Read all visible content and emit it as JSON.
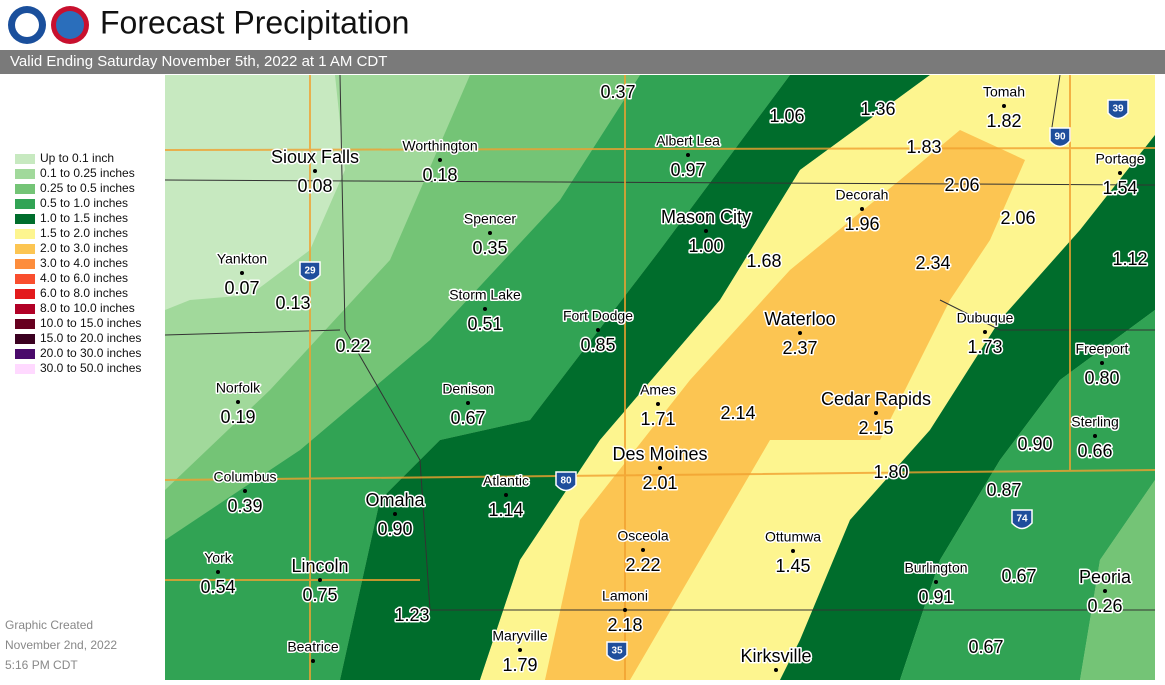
{
  "header": {
    "title": "Forecast Precipitation",
    "subtitle": "Valid Ending Saturday November 5th, 2022 at 1 AM CDT"
  },
  "legend": [
    {
      "label": "Up to 0.1 inch",
      "color": "#c7e9c0"
    },
    {
      "label": "0.1 to 0.25 inches",
      "color": "#a1d99b"
    },
    {
      "label": "0.25 to 0.5 inches",
      "color": "#74c476"
    },
    {
      "label": "0.5 to 1.0 inches",
      "color": "#31a354"
    },
    {
      "label": "1.0 to 1.5 inches",
      "color": "#006d2c"
    },
    {
      "label": "1.5 to 2.0 inches",
      "color": "#fdf58f"
    },
    {
      "label": "2.0 to 3.0 inches",
      "color": "#fcc552"
    },
    {
      "label": "3.0 to 4.0 inches",
      "color": "#fd8d3c"
    },
    {
      "label": "4.0 to 6.0 inches",
      "color": "#f94e2e"
    },
    {
      "label": "6.0 to 8.0 inches",
      "color": "#e31a1c"
    },
    {
      "label": "8.0 to 10.0 inches",
      "color": "#b10026"
    },
    {
      "label": "10.0 to 15.0 inches",
      "color": "#67001f"
    },
    {
      "label": "15.0 to 20.0 inches",
      "color": "#3b0020"
    },
    {
      "label": "20.0 to 30.0 inches",
      "color": "#4a0a6b"
    },
    {
      "label": "30.0 to 50.0 inches",
      "color": "#ffd9ff"
    }
  ],
  "cities": [
    {
      "name": "Sioux Falls",
      "value": "0.08"
    },
    {
      "name": "Worthington",
      "value": "0.18"
    },
    {
      "name": "Albert Lea",
      "value": "0.97"
    },
    {
      "name": "Spencer",
      "value": "0.35"
    },
    {
      "name": "Mason City",
      "value": "1.00"
    },
    {
      "name": "Decorah",
      "value": "1.96"
    },
    {
      "name": "Tomah",
      "value": "1.82"
    },
    {
      "name": "Portage",
      "value": "1.54"
    },
    {
      "name": "Yankton",
      "value": "0.07"
    },
    {
      "name": "Storm Lake",
      "value": "0.51"
    },
    {
      "name": "Fort Dodge",
      "value": "0.85"
    },
    {
      "name": "Waterloo",
      "value": "2.37"
    },
    {
      "name": "Dubuque",
      "value": "1.73"
    },
    {
      "name": "Freeport",
      "value": "0.80"
    },
    {
      "name": "Norfolk",
      "value": "0.19"
    },
    {
      "name": "Denison",
      "value": "0.67"
    },
    {
      "name": "Ames",
      "value": "1.71"
    },
    {
      "name": "Cedar Rapids",
      "value": "2.15"
    },
    {
      "name": "Sterling",
      "value": "0.66"
    },
    {
      "name": "Columbus",
      "value": "0.39"
    },
    {
      "name": "Omaha",
      "value": "0.90"
    },
    {
      "name": "Atlantic",
      "value": "1.14"
    },
    {
      "name": "Des Moines",
      "value": "2.01"
    },
    {
      "name": "Ottumwa",
      "value": "1.45"
    },
    {
      "name": "Osceola",
      "value": "2.22"
    },
    {
      "name": "York",
      "value": "0.54"
    },
    {
      "name": "Lincoln",
      "value": "0.75"
    },
    {
      "name": "Burlington",
      "value": "0.91"
    },
    {
      "name": "Peoria",
      "value": "0.26"
    },
    {
      "name": "Lamoni",
      "value": "2.18"
    },
    {
      "name": "Maryville",
      "value": "1.79"
    },
    {
      "name": "Beatrice"
    },
    {
      "name": "Kirksville"
    }
  ],
  "values": [
    "0.37",
    "1.06",
    "1.36",
    "1.83",
    "2.06",
    "2.06",
    "2.34",
    "1.12",
    "1.68",
    "0.13",
    "0.22",
    "2.14",
    "1.80",
    "0.90",
    "0.87",
    "0.67",
    "0.67",
    "1.23"
  ],
  "interstates": [
    "29",
    "80",
    "35",
    "74",
    "90",
    "39"
  ],
  "footer": [
    "Graphic Created",
    "November 2nd, 2022",
    "5:16 PM CDT"
  ]
}
